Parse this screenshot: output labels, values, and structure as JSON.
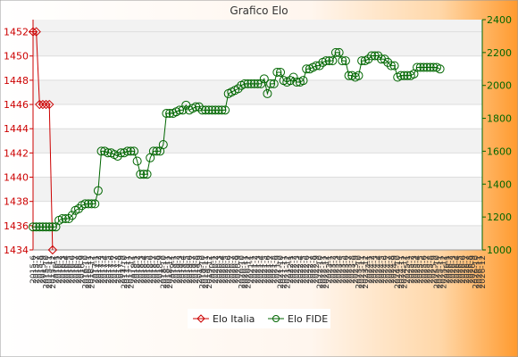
{
  "chart_data": {
    "type": "line",
    "title": "Grafico Elo",
    "left_axis": {
      "min": 1434,
      "max": 1453,
      "ticks": [
        1434,
        1436,
        1438,
        1440,
        1442,
        1444,
        1446,
        1448,
        1450,
        1452
      ],
      "color": "#cc0000"
    },
    "right_axis": {
      "min": 1000,
      "max": 2400,
      "ticks": [
        1000,
        1200,
        1400,
        1600,
        1800,
        2000,
        2200,
        2400
      ],
      "color": "#006600"
    },
    "x_tick_labels": [
      "2015-6",
      "2015-7",
      "2015-8",
      "2015-9",
      "2015-10",
      "2015-11",
      "2015-12",
      "2016-1",
      "2016-2",
      "2016-3",
      "2016-4",
      "2016-5",
      "2016-6",
      "2016-7",
      "2016-8",
      "2016-9",
      "2016-10",
      "2016-11",
      "2016-12",
      "2017-1",
      "2017-2",
      "2017-3",
      "2017-4",
      "2017-5",
      "2017-6",
      "2017-7",
      "2017-8",
      "2017-9",
      "2017-10",
      "2017-11",
      "2017-12",
      "2018-1",
      "2018-2",
      "2018-3",
      "2018-4",
      "2018-5",
      "2018-6",
      "2018-7",
      "2018-8",
      "2018-9",
      "2018-10",
      "2018-11",
      "2018-12",
      "2019-1",
      "2019-2",
      "2019-3",
      "2019-4",
      "2019-5",
      "2019-6",
      "2019-7",
      "2019-8",
      "2019-9",
      "2019-10",
      "2019-11",
      "2019-12",
      "2020-1",
      "2020-2",
      "2020-3",
      "2020-4",
      "2020-5",
      "2020-6",
      "2020-7",
      "2020-8",
      "2020-9",
      "2020-10",
      "2020-11",
      "2020-12",
      "2021-1",
      "2021-2",
      "2021-3",
      "2021-4",
      "2021-5",
      "2021-6",
      "2021-7",
      "2021-8",
      "2021-9",
      "2021-10",
      "2021-11",
      "2021-12",
      "2022-1",
      "2022-2",
      "2022-3",
      "2022-4",
      "2022-5",
      "2022-6",
      "2022-7",
      "2022-8",
      "2022-9",
      "2022-10",
      "2022-11",
      "2022-12",
      "2023-1",
      "2023-2",
      "2023-3",
      "2023-4",
      "2023-5",
      "2023-6",
      "2023-7",
      "2023-8",
      "2023-9",
      "2023-10",
      "2023-11",
      "2023-12",
      "2024-1",
      "2024-2",
      "2024-3",
      "2024-4",
      "2024-5",
      "2024-6",
      "2024-7",
      "2024-8",
      "2024-9",
      "2024-10",
      "2024-11",
      "2024-12",
      "2025-1",
      "2025-2",
      "2025-3",
      "2025-4",
      "2025-5",
      "2025-6",
      "2025-7",
      "2025-8",
      "2025-9",
      "2025-10",
      "2025-11",
      "2025-12",
      "2026-1",
      "2026-2",
      "2026-3",
      "2026-4",
      "2026-5",
      "2026-6",
      "2026-7",
      "2026-8",
      "2026-9",
      "2026-10",
      "2026-11",
      "2026-12"
    ],
    "series": [
      {
        "name": "Elo Italia",
        "axis": "left",
        "color": "#cc0000",
        "values": [
          1452,
          1452,
          1446,
          1446,
          1446,
          1446,
          1434
        ]
      },
      {
        "name": "Elo FIDE",
        "axis": "right",
        "color": "#006600",
        "values": [
          1140,
          1140,
          1140,
          1140,
          1140,
          1140,
          1140,
          1140,
          1180,
          1190,
          1190,
          1190,
          1210,
          1240,
          1250,
          1270,
          1280,
          1280,
          1280,
          1280,
          1360,
          1600,
          1600,
          1590,
          1590,
          1580,
          1570,
          1590,
          1590,
          1600,
          1600,
          1600,
          1540,
          1460,
          1460,
          1460,
          1560,
          1600,
          1600,
          1600,
          1640,
          1830,
          1830,
          1830,
          1840,
          1850,
          1850,
          1880,
          1850,
          1860,
          1870,
          1870,
          1850,
          1850,
          1850,
          1850,
          1850,
          1850,
          1850,
          1850,
          1950,
          1960,
          1970,
          1980,
          2000,
          2010,
          2010,
          2010,
          2010,
          2010,
          2010,
          2040,
          1950,
          2010,
          2010,
          2080,
          2080,
          2030,
          2020,
          2030,
          2050,
          2020,
          2020,
          2030,
          2100,
          2100,
          2110,
          2120,
          2120,
          2140,
          2150,
          2150,
          2150,
          2200,
          2200,
          2150,
          2150,
          2060,
          2060,
          2050,
          2060,
          2150,
          2150,
          2160,
          2180,
          2180,
          2180,
          2160,
          2160,
          2140,
          2120,
          2120,
          2050,
          2060,
          2060,
          2060,
          2060,
          2070,
          2110,
          2110,
          2110,
          2110,
          2110,
          2110,
          2110,
          2100
        ]
      }
    ],
    "legend_position": "bottom",
    "grid": true
  }
}
